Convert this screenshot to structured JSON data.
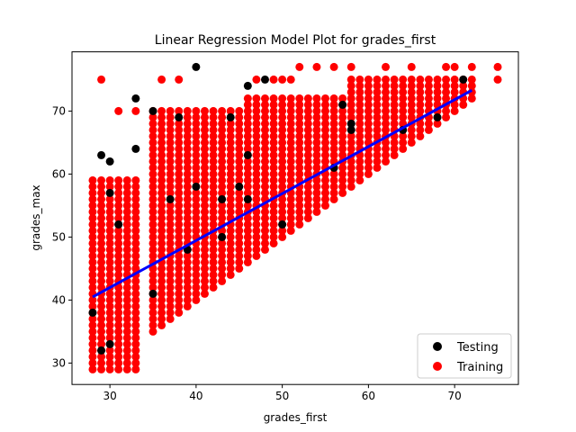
{
  "chart_data": {
    "type": "scatter",
    "title": "Linear Regression Model Plot for grades_first",
    "xlabel": "grades_first",
    "ylabel": "grades_max",
    "xlim": [
      25.6,
      77.4
    ],
    "ylim": [
      26.6,
      79.4
    ],
    "xticks": [
      30,
      40,
      50,
      60,
      70
    ],
    "yticks": [
      30,
      40,
      50,
      60,
      70
    ],
    "grid": false,
    "legend_position": "lower-right",
    "series": [
      {
        "name": "Testing",
        "color": "#000000",
        "points": [
          [
            28,
            38
          ],
          [
            29,
            32
          ],
          [
            30,
            33
          ],
          [
            30,
            57
          ],
          [
            29,
            63
          ],
          [
            30,
            62
          ],
          [
            31,
            52
          ],
          [
            33,
            64
          ],
          [
            33,
            72
          ],
          [
            35,
            70
          ],
          [
            35,
            41
          ],
          [
            37,
            56
          ],
          [
            38,
            69
          ],
          [
            39,
            48
          ],
          [
            40,
            77
          ],
          [
            40,
            58
          ],
          [
            43,
            56
          ],
          [
            43,
            50
          ],
          [
            44,
            69
          ],
          [
            45,
            58
          ],
          [
            46,
            74
          ],
          [
            46,
            63
          ],
          [
            46,
            56
          ],
          [
            48,
            75
          ],
          [
            50,
            52
          ],
          [
            56,
            61
          ],
          [
            57,
            71
          ],
          [
            58,
            68
          ],
          [
            58,
            67
          ],
          [
            64,
            67
          ],
          [
            68,
            69
          ],
          [
            71,
            75
          ]
        ]
      },
      {
        "name": "Training",
        "color": "#ff0000",
        "bands": [
          {
            "x": [
              28,
              33
            ],
            "y": [
              29,
              59
            ],
            "step": 1
          },
          {
            "x": [
              35,
              46
            ],
            "y": [
              35,
              70
            ],
            "step": 1
          },
          {
            "x": [
              46,
              58
            ],
            "y": [
              44,
              72
            ],
            "step": 1
          },
          {
            "x": [
              58,
              72
            ],
            "y": [
              59,
              75
            ],
            "step": 1
          }
        ],
        "extra_points": [
          [
            29,
            75
          ],
          [
            31,
            70
          ],
          [
            33,
            70
          ],
          [
            36,
            75
          ],
          [
            38,
            75
          ],
          [
            47,
            75
          ],
          [
            49,
            75
          ],
          [
            50,
            75
          ],
          [
            51,
            75
          ],
          [
            52,
            77
          ],
          [
            54,
            77
          ],
          [
            56,
            77
          ],
          [
            58,
            77
          ],
          [
            62,
            77
          ],
          [
            65,
            77
          ],
          [
            69,
            77
          ],
          [
            70,
            77
          ],
          [
            72,
            77
          ],
          [
            75,
            77
          ],
          [
            75,
            75
          ],
          [
            66,
            74
          ],
          [
            72,
            72
          ],
          [
            69,
            72
          ],
          [
            70,
            72
          ]
        ]
      },
      {
        "name": "",
        "type": "line",
        "color": "#0000ff",
        "points": [
          [
            28,
            40.5
          ],
          [
            72,
            73.3
          ]
        ]
      }
    ]
  }
}
